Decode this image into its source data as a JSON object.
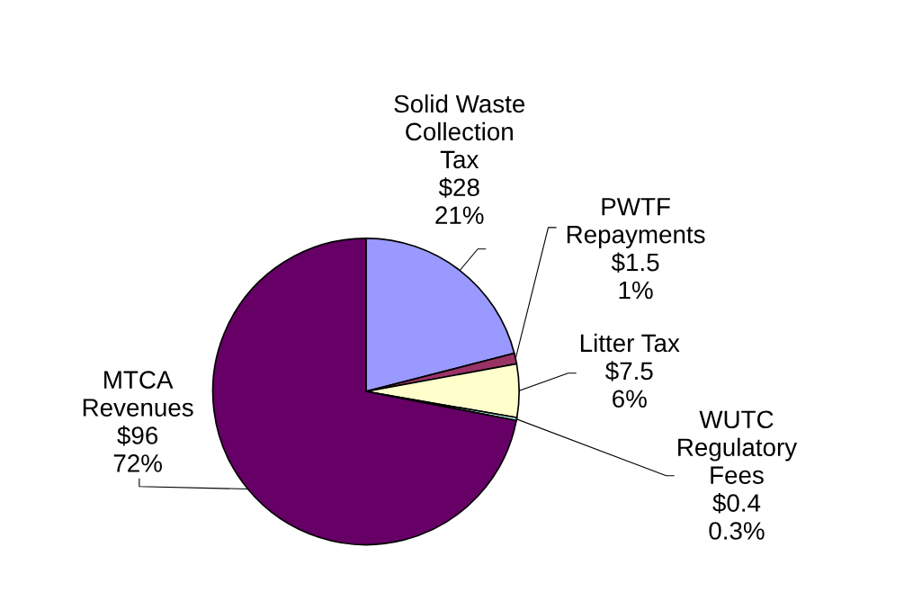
{
  "chart_data": {
    "type": "pie",
    "categories": [
      "Solid Waste\nCollection\nTax",
      "PWTF\nRepayments",
      "Litter Tax",
      "WUTC\nRegulatory\nFees",
      "MTCA\nRevenues"
    ],
    "values": [
      28,
      1.5,
      7.5,
      0.4,
      96
    ],
    "value_labels": [
      "$28\n21%",
      "$1.5\n1%",
      "$7.5\n6%",
      "$0.4\n0.3%",
      "$96\n72%"
    ],
    "colors": [
      "#9999ff",
      "#993366",
      "#ffffcc",
      "#ccffff",
      "#660066"
    ],
    "legend": false
  }
}
